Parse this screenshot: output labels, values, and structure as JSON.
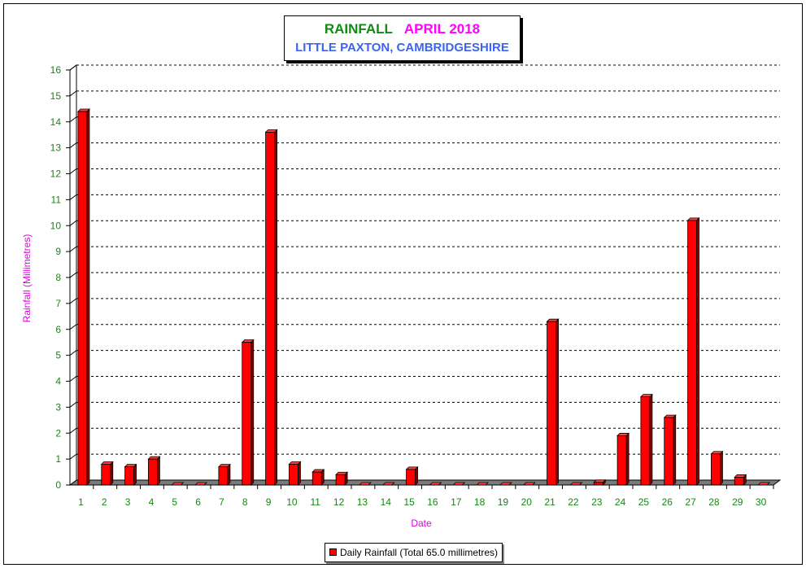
{
  "title": {
    "main": "RAINFALL",
    "month": "APRIL 2018",
    "subtitle": "LITTLE PAXTON, CAMBRIDGESHIRE"
  },
  "legend": {
    "label": "Daily Rainfall (Total 65.0 millimetres)"
  },
  "colors": {
    "bar": "#ff0000",
    "axis_text": "#138a13",
    "axis_label": "#e000e0"
  },
  "chart_data": {
    "type": "bar",
    "xlabel": "Date",
    "ylabel": "Rainfall  (Millimetres)",
    "ylim": [
      0,
      16
    ],
    "yticks": [
      0,
      1,
      2,
      3,
      4,
      5,
      6,
      7,
      8,
      9,
      10,
      11,
      12,
      13,
      14,
      15,
      16
    ],
    "grid": true,
    "legend_position": "bottom",
    "categories": [
      "1",
      "2",
      "3",
      "4",
      "5",
      "6",
      "7",
      "8",
      "9",
      "10",
      "11",
      "12",
      "13",
      "14",
      "15",
      "16",
      "17",
      "18",
      "19",
      "20",
      "21",
      "22",
      "23",
      "24",
      "25",
      "26",
      "27",
      "28",
      "29",
      "30"
    ],
    "series": [
      {
        "name": "Daily Rainfall (Total 65.0 millimetres)",
        "values": [
          14.4,
          0.8,
          0.7,
          1.0,
          0.0,
          0.0,
          0.7,
          5.5,
          13.6,
          0.8,
          0.5,
          0.4,
          0.0,
          0.0,
          0.6,
          0.0,
          0.0,
          0.0,
          0.0,
          0.0,
          6.3,
          0.0,
          0.1,
          1.9,
          3.4,
          2.6,
          10.2,
          1.2,
          0.3,
          0.0
        ]
      }
    ]
  }
}
